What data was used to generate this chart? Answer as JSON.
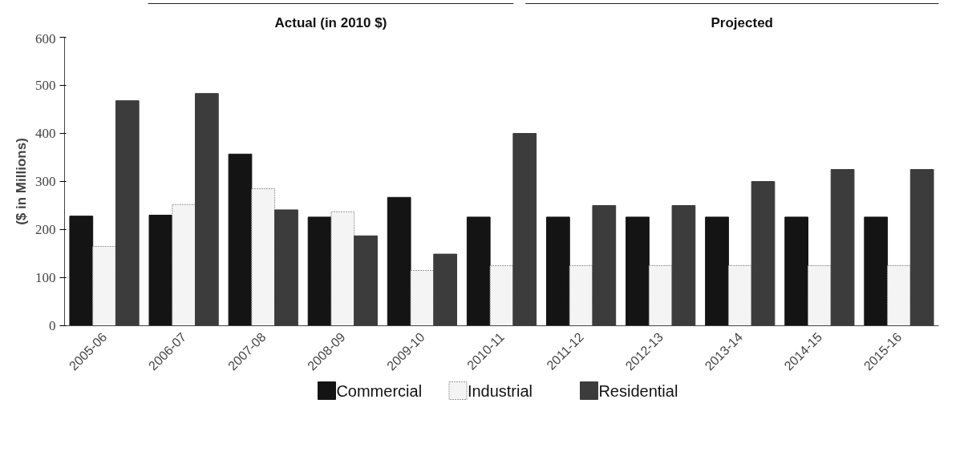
{
  "chart_data": {
    "type": "bar",
    "ylabel": "($ in Millions)",
    "annotations": [
      "Actual (in 2010 $)",
      "Projected"
    ],
    "categories": [
      "2005-06",
      "2006-07",
      "2007-08",
      "2008-09",
      "2009-10",
      "2010-11",
      "2011-12",
      "2012-13",
      "2013-14",
      "2014-15",
      "2015-16"
    ],
    "series": [
      {
        "name": "Commercial",
        "color": "#141414",
        "values": [
          228,
          230,
          357,
          226,
          267,
          226,
          226,
          226,
          226,
          226,
          226
        ]
      },
      {
        "name": "Industrial",
        "color": "#f4f4f4",
        "values": [
          165,
          252,
          285,
          237,
          115,
          125,
          125,
          125,
          125,
          125,
          125
        ]
      },
      {
        "name": "Residential",
        "color": "#3c3c3c",
        "values": [
          468,
          483,
          241,
          187,
          149,
          400,
          250,
          250,
          300,
          325,
          325
        ]
      }
    ],
    "ylim": [
      0,
      600
    ],
    "yticks": [
      0,
      100,
      200,
      300,
      400,
      500,
      600
    ],
    "grid": false,
    "legend": "bottom"
  }
}
